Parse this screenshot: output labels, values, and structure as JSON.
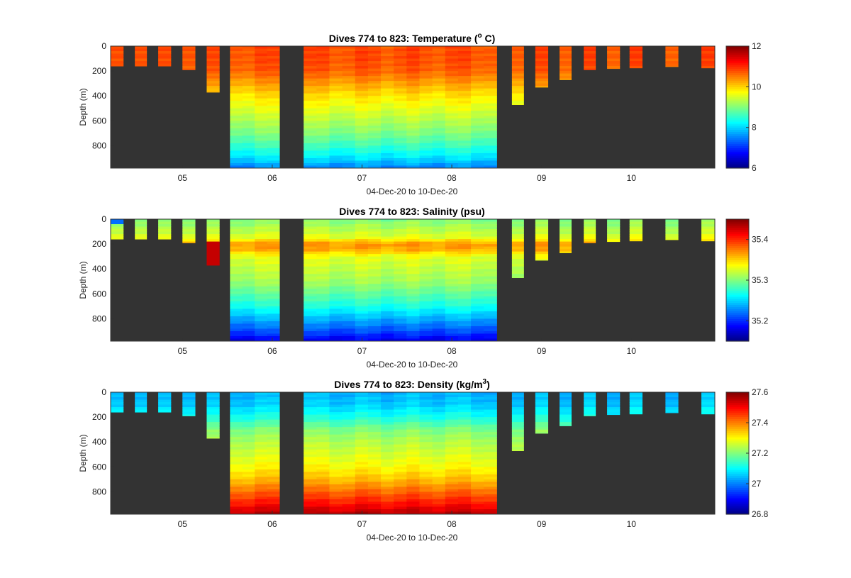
{
  "chart_data": [
    {
      "type": "heatmap",
      "title_main": "Dives 774 to 823: Temperature (",
      "title_sup": "o",
      "title_tail": " C)",
      "xlabel": "04-Dec-20 to 10-Dec-20",
      "ylabel": "Depth (m)",
      "xlim": [
        4.2,
        10.93
      ],
      "ylim": [
        0,
        980
      ],
      "y_reversed": true,
      "background_color": "#333333",
      "x_ticks": [
        {
          "v": 5,
          "label": "05"
        },
        {
          "v": 6,
          "label": "06"
        },
        {
          "v": 7,
          "label": "07"
        },
        {
          "v": 8,
          "label": "08"
        },
        {
          "v": 9,
          "label": "09"
        },
        {
          "v": 10,
          "label": "10"
        }
      ],
      "y_ticks": [
        {
          "v": 0,
          "label": "0"
        },
        {
          "v": 200,
          "label": "200"
        },
        {
          "v": 400,
          "label": "400"
        },
        {
          "v": 600,
          "label": "600"
        },
        {
          "v": 800,
          "label": "800"
        }
      ],
      "colorbar": {
        "range": [
          6,
          12
        ],
        "ticks": [
          {
            "v": 6,
            "label": "6"
          },
          {
            "v": 8,
            "label": "8"
          },
          {
            "v": 10,
            "label": "10"
          },
          {
            "v": 12,
            "label": "12"
          }
        ]
      },
      "profile": {
        "depths": [
          0,
          100,
          200,
          300,
          400,
          500,
          600,
          700,
          800,
          900,
          980
        ],
        "values": [
          10.8,
          10.8,
          10.7,
          10.3,
          9.9,
          9.6,
          9.3,
          9.0,
          8.6,
          8.1,
          7.5
        ]
      },
      "special": []
    },
    {
      "type": "heatmap",
      "title_main": "Dives 774 to 823: Salinity (psu)",
      "title_sup": "",
      "title_tail": "",
      "xlabel": "04-Dec-20 to 10-Dec-20",
      "ylabel": "Depth (m)",
      "xlim": [
        4.2,
        10.93
      ],
      "ylim": [
        0,
        980
      ],
      "y_reversed": true,
      "background_color": "#333333",
      "x_ticks": [
        {
          "v": 5,
          "label": "05"
        },
        {
          "v": 6,
          "label": "06"
        },
        {
          "v": 7,
          "label": "07"
        },
        {
          "v": 8,
          "label": "08"
        },
        {
          "v": 9,
          "label": "09"
        },
        {
          "v": 10,
          "label": "10"
        }
      ],
      "y_ticks": [
        {
          "v": 0,
          "label": "0"
        },
        {
          "v": 200,
          "label": "200"
        },
        {
          "v": 400,
          "label": "400"
        },
        {
          "v": 600,
          "label": "600"
        },
        {
          "v": 800,
          "label": "800"
        }
      ],
      "colorbar": {
        "range": [
          35.15,
          35.45
        ],
        "ticks": [
          {
            "v": 35.2,
            "label": "35.2"
          },
          {
            "v": 35.3,
            "label": "35.3"
          },
          {
            "v": 35.4,
            "label": "35.4"
          }
        ]
      },
      "profile": {
        "depths": [
          0,
          50,
          150,
          200,
          250,
          300,
          400,
          500,
          600,
          700,
          800,
          900,
          980
        ],
        "values": [
          35.3,
          35.31,
          35.33,
          35.37,
          35.36,
          35.33,
          35.32,
          35.31,
          35.29,
          35.27,
          35.24,
          35.21,
          35.18
        ]
      },
      "special": [
        {
          "profile": 0,
          "depth_from": 0,
          "depth_to": 40,
          "value": 35.22
        },
        {
          "profile": 4,
          "depth_from": 180,
          "depth_to": 370,
          "value": 35.43
        },
        {
          "profile": 14,
          "depth_from": 200,
          "depth_to": 320,
          "value": 35.39
        },
        {
          "profile": 15,
          "depth_from": 150,
          "depth_to": 250,
          "value": 35.38
        },
        {
          "profile": 16,
          "depth_from": 150,
          "depth_to": 270,
          "value": 35.41
        }
      ]
    },
    {
      "type": "heatmap",
      "title_main": "Dives 774 to 823: Density (kg/m",
      "title_sup": "3",
      "title_tail": ")",
      "xlabel": "04-Dec-20 to 10-Dec-20",
      "ylabel": "Depth (m)",
      "xlim": [
        4.2,
        10.93
      ],
      "ylim": [
        0,
        980
      ],
      "y_reversed": true,
      "background_color": "#333333",
      "x_ticks": [
        {
          "v": 5,
          "label": "05"
        },
        {
          "v": 6,
          "label": "06"
        },
        {
          "v": 7,
          "label": "07"
        },
        {
          "v": 8,
          "label": "08"
        },
        {
          "v": 9,
          "label": "09"
        },
        {
          "v": 10,
          "label": "10"
        }
      ],
      "y_ticks": [
        {
          "v": 0,
          "label": "0"
        },
        {
          "v": 200,
          "label": "200"
        },
        {
          "v": 400,
          "label": "400"
        },
        {
          "v": 600,
          "label": "600"
        },
        {
          "v": 800,
          "label": "800"
        }
      ],
      "colorbar": {
        "range": [
          26.8,
          27.6
        ],
        "ticks": [
          {
            "v": 26.8,
            "label": "26.8"
          },
          {
            "v": 27,
            "label": "27"
          },
          {
            "v": 27.2,
            "label": "27.2"
          },
          {
            "v": 27.4,
            "label": "27.4"
          },
          {
            "v": 27.6,
            "label": "27.6"
          }
        ]
      },
      "profile": {
        "depths": [
          0,
          100,
          200,
          300,
          400,
          500,
          600,
          700,
          800,
          900,
          980
        ],
        "values": [
          27.04,
          27.06,
          27.12,
          27.2,
          27.24,
          27.27,
          27.3,
          27.35,
          27.42,
          27.49,
          27.56
        ]
      },
      "special": []
    }
  ],
  "profiles": [
    {
      "t0": 4.2,
      "t1": 4.34,
      "max_depth": 160
    },
    {
      "t0": 4.47,
      "t1": 4.6,
      "max_depth": 160
    },
    {
      "t0": 4.73,
      "t1": 4.87,
      "max_depth": 160
    },
    {
      "t0": 5.0,
      "t1": 5.14,
      "max_depth": 190
    },
    {
      "t0": 5.27,
      "t1": 5.41,
      "max_depth": 370
    },
    {
      "t0": 5.53,
      "t1": 6.08,
      "max_depth": 980
    },
    {
      "t0": 6.35,
      "t1": 8.5,
      "max_depth": 980
    },
    {
      "t0": 8.67,
      "t1": 8.8,
      "max_depth": 470
    },
    {
      "t0": 8.93,
      "t1": 9.07,
      "max_depth": 330
    },
    {
      "t0": 9.2,
      "t1": 9.33,
      "max_depth": 270
    },
    {
      "t0": 9.47,
      "t1": 9.6,
      "max_depth": 190
    },
    {
      "t0": 9.73,
      "t1": 9.87,
      "max_depth": 180
    },
    {
      "t0": 9.98,
      "t1": 10.12,
      "max_depth": 175
    },
    {
      "t0": 10.38,
      "t1": 10.52,
      "max_depth": 165
    },
    {
      "t0": 10.78,
      "t1": 10.93,
      "max_depth": 175
    }
  ],
  "profile_labels": [
    "dive-block-1",
    "dive-block-2",
    "dive-block-3",
    "dive-block-4",
    "dive-block-5",
    "dive-block-6",
    "dive-block-7",
    "dive-block-8",
    "dive-block-9",
    "dive-block-10",
    "dive-block-11",
    "dive-block-12",
    "dive-block-13",
    "dive-block-14",
    "dive-block-15"
  ]
}
